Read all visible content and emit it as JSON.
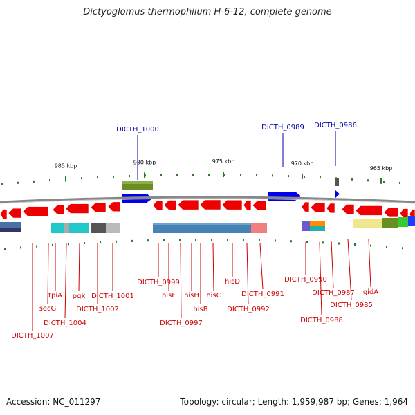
{
  "title": "Dictyoglomus thermophilum H-6-12, complete genome",
  "footer": {
    "accession": "Accession: NC_011297",
    "topology": "Topology: circular; Length: 1,959,987 bp; Genes: 1,964"
  },
  "colors": {
    "forward_gene": "#0000ee",
    "reverse_gene": "#ee0000",
    "forward_label": "#0000aa",
    "reverse_label": "#cc0000",
    "tick": "#2a7a2a",
    "backbone": "#888888"
  },
  "scale": [
    {
      "kbp": 985,
      "label": "985 kbp"
    },
    {
      "kbp": 980,
      "label": "980 kbp"
    },
    {
      "kbp": 975,
      "label": "975 kbp"
    },
    {
      "kbp": 970,
      "label": "970 kbp"
    },
    {
      "kbp": 965,
      "label": "965 kbp"
    }
  ],
  "forward_labels": [
    "DICTH_1000",
    "DICTH_0989",
    "DICTH_0986"
  ],
  "reverse_labels": [
    "DICTH_1007",
    "secG",
    "tpiA",
    "DICTH_1004",
    "pgk",
    "DICTH_1002",
    "DICTH_1001",
    "DICTH_0999",
    "hisF",
    "DICTH_0997",
    "hisH",
    "hisB",
    "hisC",
    "hisD",
    "DICTH_0992",
    "DICTH_0991",
    "DICTH_0990",
    "DICTH_0988",
    "DICTH_0987",
    "DICTH_0985",
    "gidA"
  ]
}
